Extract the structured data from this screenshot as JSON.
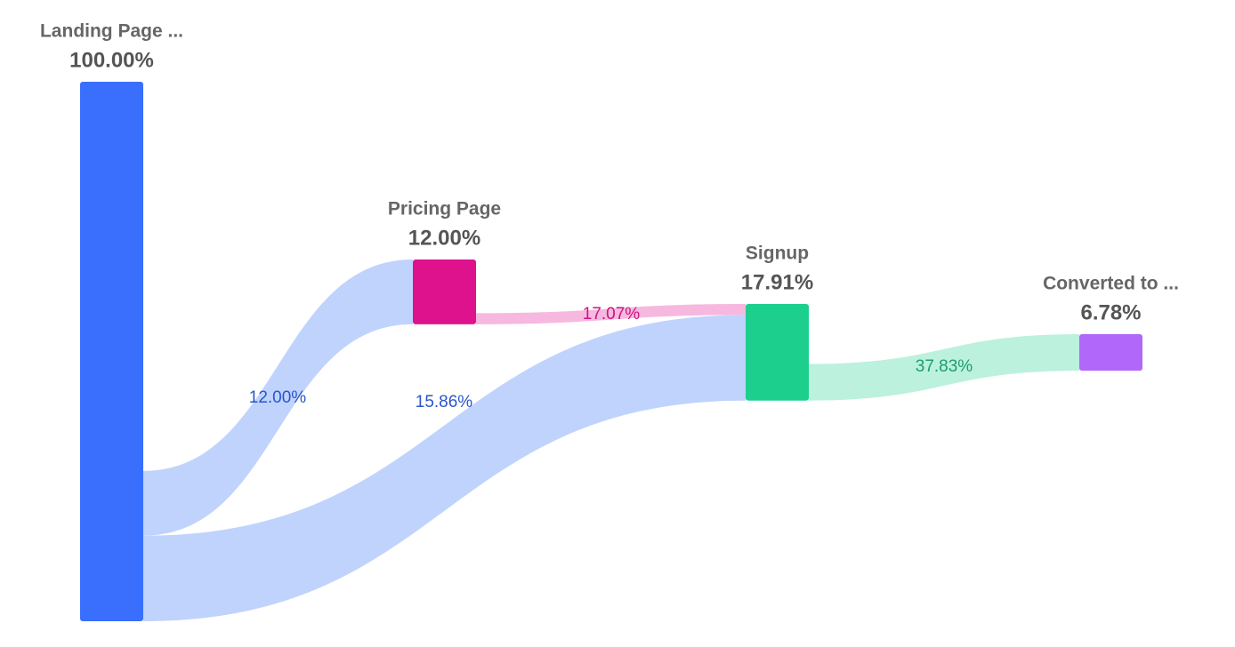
{
  "chart_data": {
    "type": "sankey",
    "nodes": {
      "names": [
        "Landing Page ...",
        "Pricing Page",
        "Signup",
        "Converted to ..."
      ],
      "values": [
        100,
        12,
        17.91,
        6.78
      ],
      "value_labels": [
        "100.00%",
        "12.00%",
        "17.91%",
        "6.78%"
      ],
      "colors": [
        "#396ffc",
        "#df128e",
        "#1ccf8c",
        "#b167fa"
      ]
    },
    "links": {
      "source": [
        0,
        1,
        0,
        2
      ],
      "target": [
        1,
        2,
        2,
        3
      ],
      "values": [
        12,
        17.07,
        15.86,
        37.83
      ],
      "value_labels": [
        "12.00%",
        "17.07%",
        "15.86%",
        "37.83%"
      ],
      "colors": [
        "#c0d3fd",
        "#f7b8df",
        "#c0d3fd",
        "#bbf1dd"
      ],
      "label_colors": [
        "#2b55c9",
        "#c8157f",
        "#2b55c9",
        "#1c9e6e"
      ]
    }
  }
}
